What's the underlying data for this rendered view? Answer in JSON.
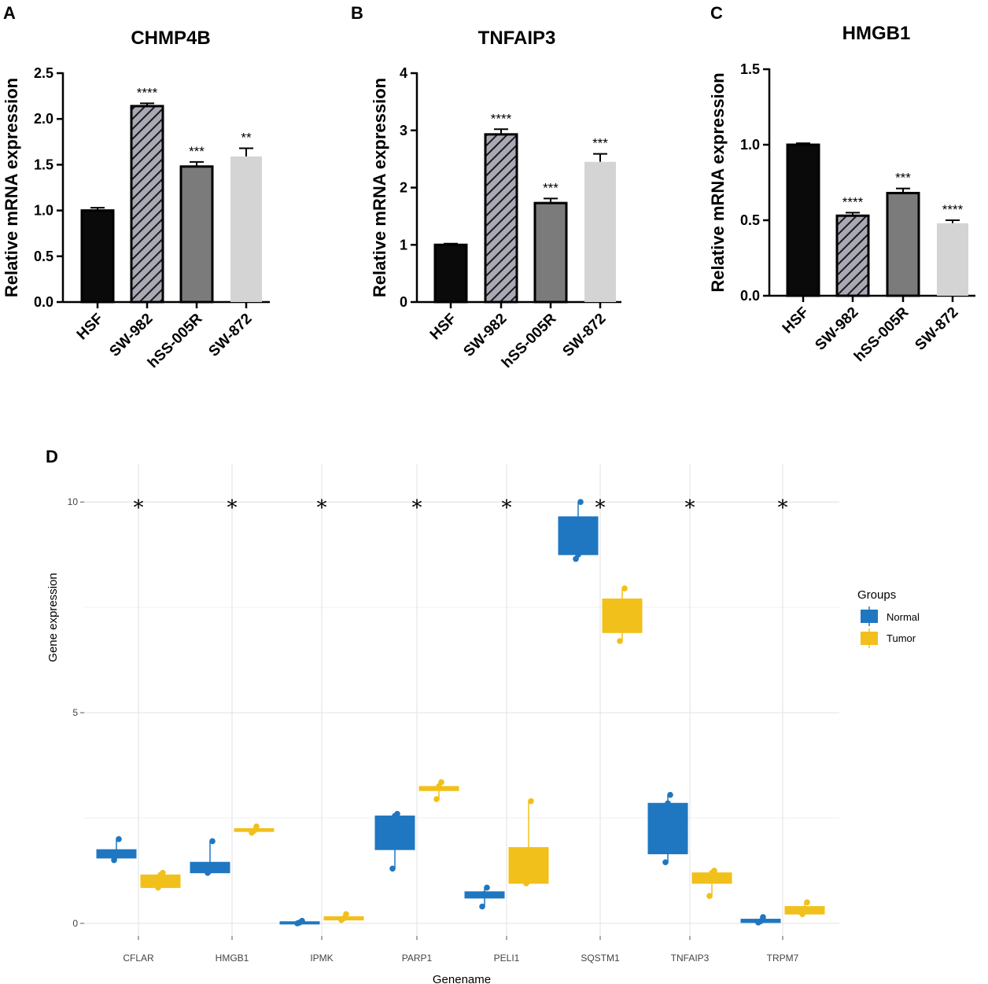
{
  "colors": {
    "black": "#0a0a0a",
    "hatch_bg": "#a9a9b5",
    "dark_gray": "#7b7b7b",
    "light_gray": "#d4d4d4",
    "normal": "#1f77c1",
    "tumor": "#f2c01a",
    "grid": "#e5e5e5"
  },
  "chart_data": [
    {
      "panel": "A",
      "type": "bar",
      "title": "CHMP4B",
      "ylabel": "Relative mRNA expression",
      "categories": [
        "HSF",
        "SW-982",
        "hSS-005R",
        "SW-872"
      ],
      "values": [
        1.0,
        2.14,
        1.48,
        1.59
      ],
      "errors": [
        0.03,
        0.03,
        0.05,
        0.09
      ],
      "significance": [
        "",
        "****",
        "***",
        "**"
      ],
      "fills": [
        "black",
        "hatch",
        "dark_gray",
        "light_gray"
      ],
      "ylim": [
        0,
        2.5
      ],
      "yticks": [
        "0.0",
        "0.5",
        "1.0",
        "1.5",
        "2.0",
        "2.5"
      ]
    },
    {
      "panel": "B",
      "type": "bar",
      "title": "TNFAIP3",
      "ylabel": "Relative mRNA expression",
      "categories": [
        "HSF",
        "SW-982",
        "hSS-005R",
        "SW-872"
      ],
      "values": [
        1.0,
        2.93,
        1.73,
        2.45
      ],
      "errors": [
        0.02,
        0.09,
        0.08,
        0.14
      ],
      "significance": [
        "",
        "****",
        "***",
        "***"
      ],
      "fills": [
        "black",
        "hatch",
        "dark_gray",
        "light_gray"
      ],
      "ylim": [
        0,
        4
      ],
      "yticks": [
        "0",
        "1",
        "2",
        "3",
        "4"
      ]
    },
    {
      "panel": "C",
      "type": "bar",
      "title": "HMGB1",
      "ylabel": "Relative mRNA expression",
      "categories": [
        "HSF",
        "SW-982",
        "hSS-005R",
        "SW-872"
      ],
      "values": [
        1.0,
        0.53,
        0.68,
        0.48
      ],
      "errors": [
        0.01,
        0.02,
        0.03,
        0.02
      ],
      "significance": [
        "",
        "****",
        "***",
        "****"
      ],
      "fills": [
        "black",
        "hatch",
        "dark_gray",
        "light_gray"
      ],
      "ylim": [
        0,
        1.5
      ],
      "yticks": [
        "0.0",
        "0.5",
        "1.0",
        "1.5"
      ]
    },
    {
      "panel": "D",
      "type": "box",
      "xlabel": "Genename",
      "ylabel": "Gene expression",
      "ylim": [
        -0.3,
        10.9
      ],
      "yticks": [
        "0",
        "5",
        "10"
      ],
      "legend_title": "Groups",
      "groups": [
        "Normal",
        "Tumor"
      ],
      "significance_label": "*",
      "significance_y": 10,
      "genes": [
        {
          "name": "CFLAR",
          "normal": {
            "min": 1.5,
            "q1": 1.55,
            "median": 1.65,
            "q3": 1.75,
            "max": 2.0,
            "points": [
              1.5,
              1.65,
              2.0
            ]
          },
          "tumor": {
            "min": 0.85,
            "q1": 0.85,
            "median": 1.05,
            "q3": 1.15,
            "max": 1.2,
            "points": [
              0.85,
              1.15,
              1.2
            ]
          }
        },
        {
          "name": "HMGB1",
          "normal": {
            "min": 1.2,
            "q1": 1.2,
            "median": 1.3,
            "q3": 1.45,
            "max": 1.95,
            "points": [
              1.2,
              1.25,
              1.95
            ]
          },
          "tumor": {
            "min": 2.15,
            "q1": 2.18,
            "median": 2.2,
            "q3": 2.25,
            "max": 2.3,
            "points": [
              2.15,
              2.2,
              2.3
            ]
          }
        },
        {
          "name": "IPMK",
          "normal": {
            "min": 0.0,
            "q1": 0.0,
            "median": 0.02,
            "q3": 0.04,
            "max": 0.06,
            "points": [
              0.0,
              0.02,
              0.06
            ]
          },
          "tumor": {
            "min": 0.08,
            "q1": 0.08,
            "median": 0.12,
            "q3": 0.16,
            "max": 0.22,
            "points": [
              0.08,
              0.12,
              0.22
            ]
          }
        },
        {
          "name": "PARP1",
          "normal": {
            "min": 1.3,
            "q1": 1.75,
            "median": 1.9,
            "q3": 2.55,
            "max": 2.6,
            "points": [
              1.3,
              2.55,
              2.6
            ]
          },
          "tumor": {
            "min": 2.95,
            "q1": 3.15,
            "median": 3.2,
            "q3": 3.25,
            "max": 3.35,
            "points": [
              2.95,
              3.25,
              3.35
            ]
          }
        },
        {
          "name": "PELI1",
          "normal": {
            "min": 0.4,
            "q1": 0.6,
            "median": 0.65,
            "q3": 0.75,
            "max": 0.85,
            "points": [
              0.4,
              0.7,
              0.85
            ]
          },
          "tumor": {
            "min": 0.95,
            "q1": 0.95,
            "median": 1.0,
            "q3": 1.8,
            "max": 2.9,
            "points": [
              0.95,
              1.0,
              2.9
            ]
          }
        },
        {
          "name": "SQSTM1",
          "normal": {
            "min": 8.65,
            "q1": 8.75,
            "median": 8.9,
            "q3": 9.65,
            "max": 10.0,
            "points": [
              8.65,
              8.75,
              10.0
            ]
          },
          "tumor": {
            "min": 6.7,
            "q1": 6.9,
            "median": 7.3,
            "q3": 7.7,
            "max": 7.95,
            "points": [
              6.7,
              7.6,
              7.95
            ]
          }
        },
        {
          "name": "TNFAIP3",
          "normal": {
            "min": 1.45,
            "q1": 1.65,
            "median": 2.05,
            "q3": 2.85,
            "max": 3.05,
            "points": [
              1.45,
              2.85,
              3.05
            ]
          },
          "tumor": {
            "min": 0.65,
            "q1": 0.95,
            "median": 1.1,
            "q3": 1.2,
            "max": 1.25,
            "points": [
              0.65,
              1.2,
              1.25
            ]
          }
        },
        {
          "name": "TRPM7",
          "normal": {
            "min": 0.02,
            "q1": 0.02,
            "median": 0.06,
            "q3": 0.1,
            "max": 0.15,
            "points": [
              0.02,
              0.05,
              0.15
            ]
          },
          "tumor": {
            "min": 0.22,
            "q1": 0.22,
            "median": 0.3,
            "q3": 0.4,
            "max": 0.5,
            "points": [
              0.22,
              0.3,
              0.5
            ]
          }
        }
      ]
    }
  ]
}
